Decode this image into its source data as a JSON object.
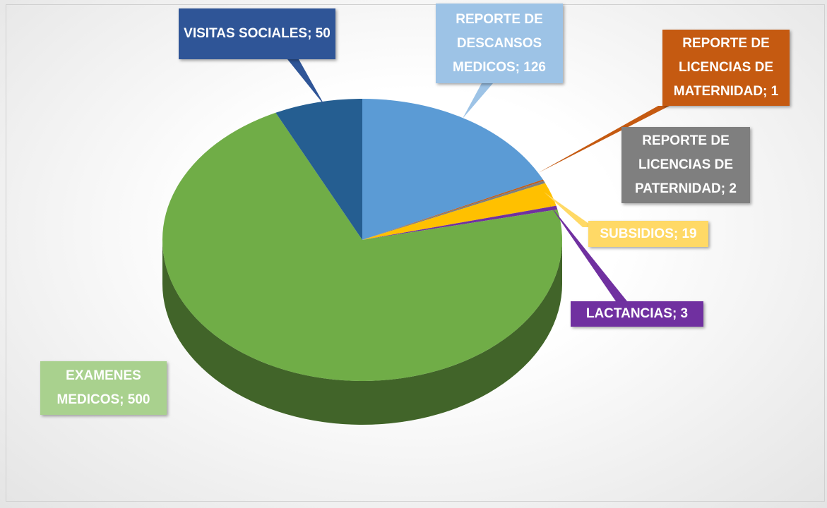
{
  "chart_data": {
    "type": "pie3d",
    "values": [
      126,
      1,
      2,
      19,
      3,
      500,
      50
    ],
    "value_labels": [
      "REPORTE DE DESCANSOS MEDICOS; 126",
      "REPORTE DE LICENCIAS DE MATERNIDAD; 1",
      "REPORTE DE LICENCIAS DE PATERNIDAD; 2",
      "SUBSIDIOS; 19",
      "LACTANCIAS; 3",
      "EXAMENES MEDICOS; 500",
      "VISITAS SOCIALES; 50"
    ],
    "colors": [
      "#5b9bd5",
      "#c55a11",
      "#7f7f7f",
      "#ffc000",
      "#7030a0",
      "#70ad47",
      "#255e91"
    ],
    "label_colors": [
      "#9dc3e6",
      "#c55a11",
      "#7f7f7f",
      "#ffd966",
      "#7030a0",
      "#a9d18e",
      "#2f5597"
    ]
  }
}
